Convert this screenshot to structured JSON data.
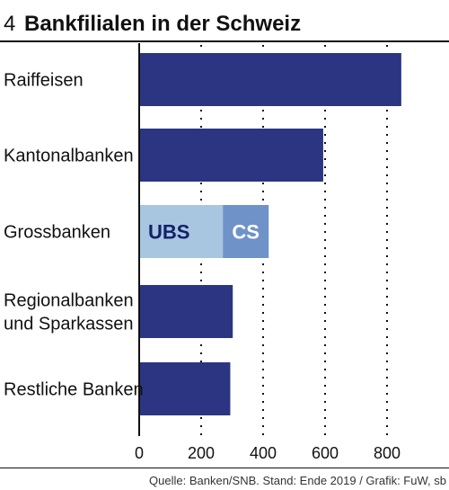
{
  "figure_number": "4",
  "title": "Bankfilialen in der Schweiz",
  "source": "Quelle: Banken/SNB. Stand: Ende 2019 / Grafik: FuW, sb",
  "colors": {
    "bar": "#2b3582",
    "ubs": "#a8c6e0",
    "cs": "#6f93c8",
    "axis": "#111111",
    "grid": "#111111",
    "rule": "#111111"
  },
  "chart_data": {
    "type": "bar",
    "orientation": "horizontal",
    "categories": [
      "Raiffeisen",
      "Kantonalbanken",
      "Grossbanken",
      "Regionalbanken\nund Sparkassen",
      "Restliche Banken"
    ],
    "values": [
      846,
      594,
      418,
      302,
      294
    ],
    "stacked_segments": {
      "Grossbanken": [
        {
          "name": "UBS",
          "value": 270
        },
        {
          "name": "CS",
          "value": 148
        }
      ]
    },
    "xlim": [
      0,
      860
    ],
    "xticks": [
      0,
      200,
      400,
      600,
      800
    ],
    "grid": "vertical dotted",
    "xlabel": "",
    "ylabel": ""
  }
}
